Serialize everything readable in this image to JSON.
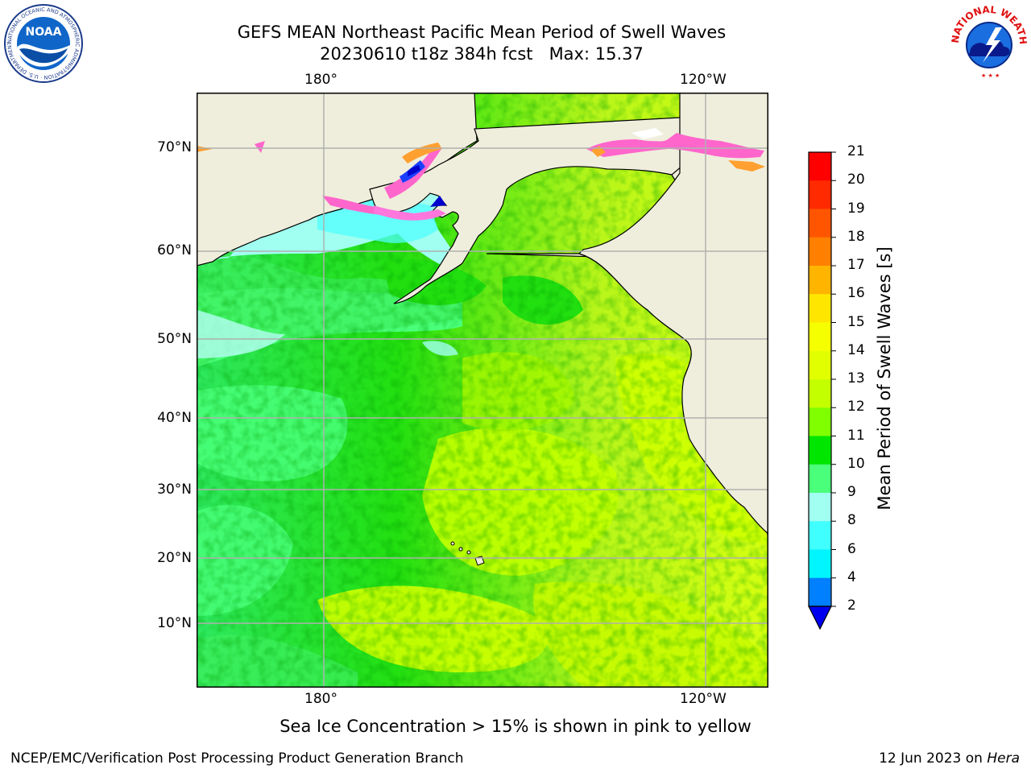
{
  "title_line1": "GEFS MEAN Northeast Pacific Mean Period of Swell Waves",
  "title_line2": "20230610 t18z 384h fcst   Max: 15.37",
  "lon_ticks": [
    "180°",
    "120°W"
  ],
  "lat_ticks": [
    "70°N",
    "60°N",
    "50°N",
    "40°N",
    "30°N",
    "20°N",
    "10°N"
  ],
  "colorbar": {
    "label": "Mean Period of Swell Waves [s]",
    "ticks": [
      "21",
      "20",
      "19",
      "18",
      "17",
      "16",
      "15",
      "14",
      "13",
      "12",
      "11",
      "10",
      "9",
      "8",
      "6",
      "4",
      "2"
    ],
    "colors": [
      "#ff0000",
      "#ff2a00",
      "#ff5500",
      "#ff8000",
      "#ffb400",
      "#ffe600",
      "#f5ff00",
      "#e2ff00",
      "#c4ff00",
      "#80ff00",
      "#00e600",
      "#4aff7a",
      "#a0fff0",
      "#40ffff",
      "#00f5ff",
      "#0080ff",
      "#0000ee"
    ],
    "extend_color": "#0000ee"
  },
  "colors": {
    "land": "#efeedc",
    "ocean_base": "#9af528",
    "grid": "#b0b0b0",
    "ice_pink": "#ff66cc",
    "ice_orange": "#ffa030"
  },
  "caption": "Sea Ice Concentration > 15% is shown in pink to yellow",
  "footer_left": "NCEP/EMC/Verification Post Processing Product Generation Branch",
  "footer_date": "12 Jun 2023 on ",
  "footer_host": "Hera",
  "logos": {
    "noaa_text": "NOAA",
    "noaa_ring": "NATIONAL OCEANIC AND ATMOSPHERIC ADMINISTRATION · U.S. DEPARTMENT OF COMMERCE",
    "nws_ring": "NATIONAL WEATHER SERVICE"
  }
}
